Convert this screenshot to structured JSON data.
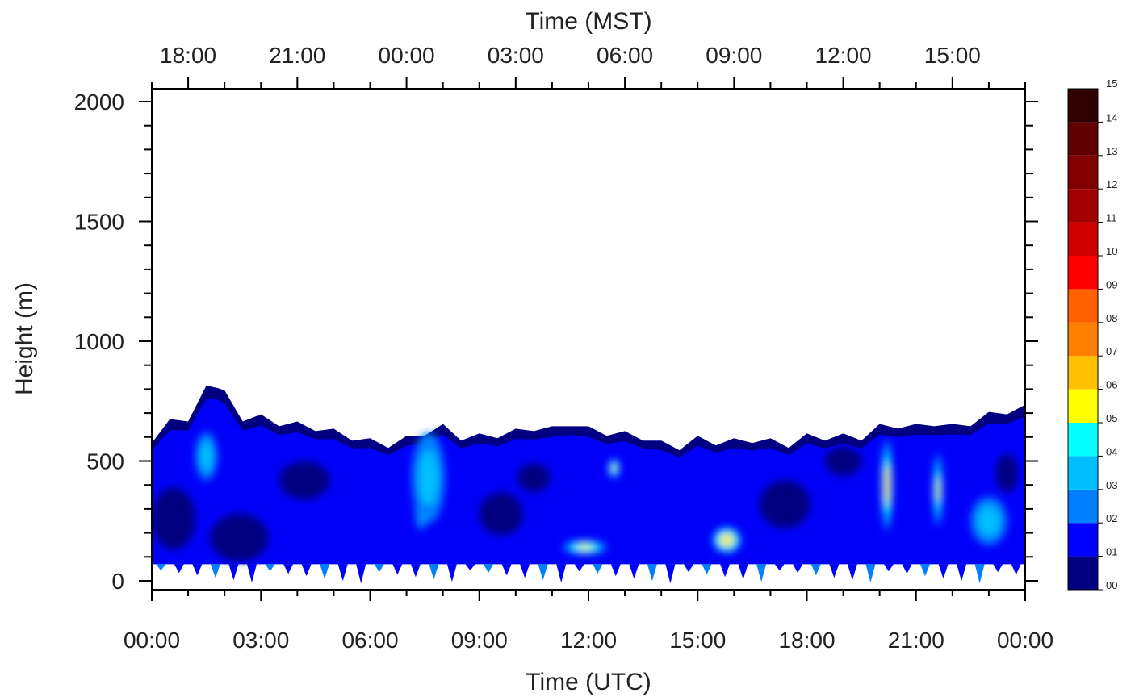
{
  "chart_data": {
    "type": "heatmap",
    "title": "",
    "top_axis_title": "Time (MST)",
    "xlabel": "Time (UTC)",
    "ylabel": "Height (m)",
    "x_ticks_utc": [
      "00:00",
      "03:00",
      "06:00",
      "09:00",
      "12:00",
      "15:00",
      "18:00",
      "21:00",
      "00:00"
    ],
    "x_ticks_mst": [
      "18:00",
      "21:00",
      "00:00",
      "03:00",
      "06:00",
      "09:00",
      "12:00",
      "15:00"
    ],
    "y_ticks": [
      "0",
      "500",
      "1000",
      "1500",
      "2000"
    ],
    "xlim_hours": [
      0,
      24
    ],
    "ylim": [
      0,
      2000
    ],
    "colorbar": {
      "labels": [
        "00",
        "01",
        "02",
        "03",
        "04",
        "05",
        "06",
        "07",
        "08",
        "09",
        "10",
        "11",
        "12",
        "13",
        "14"
      ],
      "top_label": "15",
      "colors": [
        "#000080",
        "#0000ff",
        "#0080ff",
        "#00bfff",
        "#00ffff",
        "#ffff00",
        "#ffc000",
        "#ff8000",
        "#ff6000",
        "#ff0000",
        "#d00000",
        "#a00000",
        "#800000",
        "#600000",
        "#300000"
      ]
    },
    "layer_top_profile": [
      [
        0,
        590
      ],
      [
        0.5,
        660
      ],
      [
        1.0,
        680
      ],
      [
        1.5,
        800
      ],
      [
        1.8,
        820
      ],
      [
        2.0,
        780
      ],
      [
        2.5,
        680
      ],
      [
        3.0,
        680
      ],
      [
        3.5,
        660
      ],
      [
        4.0,
        650
      ],
      [
        4.5,
        640
      ],
      [
        5.0,
        620
      ],
      [
        5.5,
        600
      ],
      [
        6.0,
        580
      ],
      [
        6.5,
        570
      ],
      [
        7.0,
        590
      ],
      [
        7.5,
        620
      ],
      [
        8.0,
        640
      ],
      [
        8.5,
        600
      ],
      [
        9.0,
        600
      ],
      [
        9.5,
        610
      ],
      [
        10.0,
        620
      ],
      [
        10.5,
        640
      ],
      [
        11.0,
        630
      ],
      [
        11.5,
        660
      ],
      [
        12.0,
        630
      ],
      [
        12.5,
        620
      ],
      [
        13.0,
        610
      ],
      [
        13.5,
        600
      ],
      [
        14.0,
        570
      ],
      [
        14.5,
        560
      ],
      [
        15.0,
        590
      ],
      [
        15.5,
        580
      ],
      [
        16.0,
        580
      ],
      [
        16.5,
        590
      ],
      [
        17.0,
        580
      ],
      [
        17.5,
        570
      ],
      [
        18.0,
        600
      ],
      [
        18.5,
        600
      ],
      [
        19.0,
        600
      ],
      [
        19.5,
        600
      ],
      [
        20.0,
        640
      ],
      [
        20.5,
        650
      ],
      [
        21.0,
        640
      ],
      [
        21.5,
        660
      ],
      [
        22.0,
        640
      ],
      [
        22.5,
        660
      ],
      [
        23.0,
        690
      ],
      [
        23.5,
        710
      ],
      [
        24.0,
        720
      ]
    ],
    "layer_base_m": 70,
    "hotspots": [
      {
        "x": 1.5,
        "y": 520,
        "w": 0.6,
        "h": 200,
        "level": 3
      },
      {
        "x": 7.4,
        "y": 340,
        "w": 0.35,
        "h": 260,
        "level": 5
      },
      {
        "x": 7.6,
        "y": 430,
        "w": 0.9,
        "h": 380,
        "level": 3
      },
      {
        "x": 11.9,
        "y": 140,
        "w": 1.2,
        "h": 60,
        "level": 5
      },
      {
        "x": 12.7,
        "y": 470,
        "w": 0.3,
        "h": 80,
        "level": 5
      },
      {
        "x": 15.8,
        "y": 170,
        "w": 0.8,
        "h": 110,
        "level": 6
      },
      {
        "x": 20.2,
        "y": 400,
        "w": 0.3,
        "h": 380,
        "level": 6
      },
      {
        "x": 21.6,
        "y": 380,
        "w": 0.25,
        "h": 300,
        "level": 5
      },
      {
        "x": 23.0,
        "y": 250,
        "w": 1.0,
        "h": 200,
        "level": 3
      }
    ],
    "dark_patches": [
      {
        "x": 0.6,
        "y": 260,
        "w": 1.2,
        "h": 260
      },
      {
        "x": 2.4,
        "y": 180,
        "w": 1.6,
        "h": 200
      },
      {
        "x": 4.2,
        "y": 420,
        "w": 1.4,
        "h": 160
      },
      {
        "x": 9.6,
        "y": 280,
        "w": 1.2,
        "h": 180
      },
      {
        "x": 10.5,
        "y": 430,
        "w": 0.9,
        "h": 120
      },
      {
        "x": 17.4,
        "y": 320,
        "w": 1.4,
        "h": 200
      },
      {
        "x": 19.0,
        "y": 500,
        "w": 1.0,
        "h": 120
      },
      {
        "x": 23.5,
        "y": 450,
        "w": 0.6,
        "h": 160
      }
    ]
  }
}
